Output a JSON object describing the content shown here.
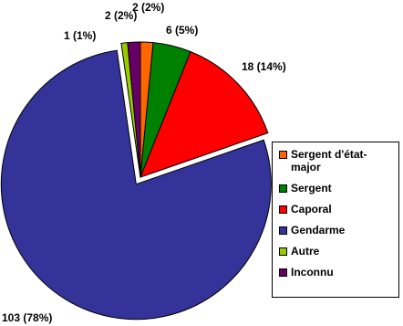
{
  "chart_data": {
    "type": "pie",
    "categories": [
      "Sergent d'état-major",
      "Sergent",
      "Caporal",
      "Gendarme",
      "Autre",
      "Inconnu"
    ],
    "values": [
      2,
      6,
      18,
      103,
      1,
      2
    ],
    "value_labels": [
      "2 (2%)",
      "6 (5%)",
      "18 (14%)",
      "103 (78%)",
      "1 (1%)",
      "2 (2%)"
    ],
    "colors": [
      "#ff6600",
      "#008000",
      "#ff0000",
      "#333399",
      "#99cc00",
      "#660066"
    ],
    "exploded": "Gendarme",
    "legend": "right"
  }
}
